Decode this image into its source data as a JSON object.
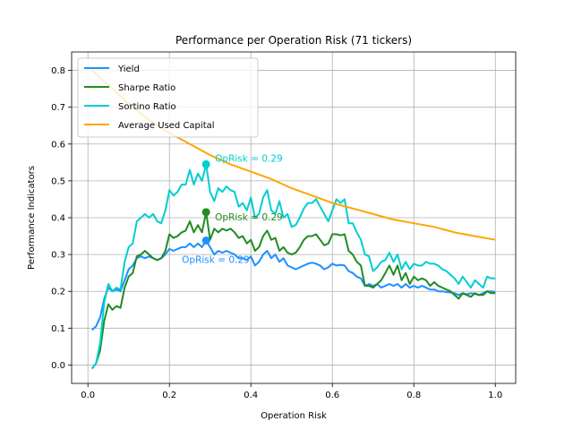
{
  "chart_data": {
    "type": "line",
    "title": "Performance per Operation Risk (71 tickers)",
    "xlabel": "Operation Risk",
    "ylabel": "Performance Indicators",
    "xlim": [
      -0.04,
      1.05
    ],
    "ylim": [
      -0.05,
      0.85
    ],
    "xticks": [
      0.0,
      0.2,
      0.4,
      0.6,
      0.8,
      1.0
    ],
    "xtick_labels": [
      "0.0",
      "0.2",
      "0.4",
      "0.6",
      "0.8",
      "1.0"
    ],
    "yticks": [
      0.0,
      0.1,
      0.2,
      0.3,
      0.4,
      0.5,
      0.6,
      0.7,
      0.8
    ],
    "ytick_labels": [
      "0.0",
      "0.1",
      "0.2",
      "0.3",
      "0.4",
      "0.5",
      "0.6",
      "0.7",
      "0.8"
    ],
    "grid": true,
    "legend_position": "top-left",
    "series": [
      {
        "name": "Yield",
        "color": "#1E90FF",
        "x": [
          0.01,
          0.02,
          0.03,
          0.04,
          0.05,
          0.06,
          0.07,
          0.08,
          0.09,
          0.1,
          0.11,
          0.12,
          0.13,
          0.14,
          0.15,
          0.16,
          0.17,
          0.18,
          0.19,
          0.2,
          0.21,
          0.22,
          0.23,
          0.24,
          0.25,
          0.26,
          0.27,
          0.28,
          0.29,
          0.3,
          0.31,
          0.32,
          0.33,
          0.34,
          0.35,
          0.36,
          0.37,
          0.38,
          0.39,
          0.4,
          0.41,
          0.42,
          0.43,
          0.44,
          0.45,
          0.46,
          0.47,
          0.48,
          0.49,
          0.5,
          0.51,
          0.52,
          0.53,
          0.54,
          0.55,
          0.56,
          0.57,
          0.58,
          0.59,
          0.6,
          0.61,
          0.62,
          0.63,
          0.64,
          0.65,
          0.66,
          0.67,
          0.68,
          0.69,
          0.7,
          0.71,
          0.72,
          0.73,
          0.74,
          0.75,
          0.76,
          0.77,
          0.78,
          0.79,
          0.8,
          0.81,
          0.82,
          0.83,
          0.84,
          0.85,
          0.86,
          0.87,
          0.88,
          0.89,
          0.9,
          0.91,
          0.92,
          0.93,
          0.94,
          0.95,
          0.96,
          0.97,
          0.98,
          0.99,
          1.0
        ],
        "y": [
          0.095,
          0.105,
          0.13,
          0.18,
          0.21,
          0.2,
          0.205,
          0.2,
          0.23,
          0.26,
          0.27,
          0.29,
          0.295,
          0.29,
          0.295,
          0.29,
          0.285,
          0.29,
          0.3,
          0.315,
          0.31,
          0.315,
          0.32,
          0.32,
          0.33,
          0.32,
          0.33,
          0.32,
          0.338,
          0.32,
          0.3,
          0.31,
          0.305,
          0.31,
          0.305,
          0.3,
          0.29,
          0.29,
          0.285,
          0.295,
          0.27,
          0.28,
          0.3,
          0.31,
          0.29,
          0.3,
          0.28,
          0.29,
          0.27,
          0.265,
          0.26,
          0.265,
          0.27,
          0.275,
          0.278,
          0.275,
          0.27,
          0.26,
          0.265,
          0.275,
          0.27,
          0.272,
          0.27,
          0.255,
          0.25,
          0.24,
          0.235,
          0.215,
          0.22,
          0.215,
          0.22,
          0.21,
          0.215,
          0.22,
          0.215,
          0.22,
          0.21,
          0.22,
          0.21,
          0.215,
          0.21,
          0.215,
          0.21,
          0.205,
          0.205,
          0.2,
          0.2,
          0.198,
          0.197,
          0.195,
          0.19,
          0.195,
          0.192,
          0.195,
          0.193,
          0.19,
          0.195,
          0.2,
          0.2,
          0.198
        ]
      },
      {
        "name": "Sharpe Ratio",
        "color": "#228B22",
        "x": [
          0.01,
          0.02,
          0.03,
          0.04,
          0.05,
          0.06,
          0.07,
          0.08,
          0.09,
          0.1,
          0.11,
          0.12,
          0.13,
          0.14,
          0.15,
          0.16,
          0.17,
          0.18,
          0.19,
          0.2,
          0.21,
          0.22,
          0.23,
          0.24,
          0.25,
          0.26,
          0.27,
          0.28,
          0.29,
          0.3,
          0.31,
          0.32,
          0.33,
          0.34,
          0.35,
          0.36,
          0.37,
          0.38,
          0.39,
          0.4,
          0.41,
          0.42,
          0.43,
          0.44,
          0.45,
          0.46,
          0.47,
          0.48,
          0.49,
          0.5,
          0.51,
          0.52,
          0.53,
          0.54,
          0.55,
          0.56,
          0.57,
          0.58,
          0.59,
          0.6,
          0.61,
          0.62,
          0.63,
          0.64,
          0.65,
          0.66,
          0.67,
          0.68,
          0.69,
          0.7,
          0.71,
          0.72,
          0.73,
          0.74,
          0.75,
          0.76,
          0.77,
          0.78,
          0.79,
          0.8,
          0.81,
          0.82,
          0.83,
          0.84,
          0.85,
          0.86,
          0.87,
          0.88,
          0.89,
          0.9,
          0.91,
          0.92,
          0.93,
          0.94,
          0.95,
          0.96,
          0.97,
          0.98,
          0.99,
          1.0
        ],
        "y": [
          -0.01,
          0.005,
          0.04,
          0.12,
          0.165,
          0.15,
          0.16,
          0.155,
          0.21,
          0.24,
          0.25,
          0.295,
          0.3,
          0.31,
          0.3,
          0.29,
          0.285,
          0.29,
          0.31,
          0.355,
          0.345,
          0.35,
          0.36,
          0.365,
          0.39,
          0.36,
          0.38,
          0.36,
          0.415,
          0.34,
          0.37,
          0.36,
          0.37,
          0.365,
          0.37,
          0.36,
          0.345,
          0.35,
          0.33,
          0.34,
          0.31,
          0.32,
          0.35,
          0.365,
          0.34,
          0.345,
          0.31,
          0.32,
          0.305,
          0.3,
          0.305,
          0.32,
          0.34,
          0.35,
          0.35,
          0.355,
          0.34,
          0.325,
          0.33,
          0.355,
          0.355,
          0.352,
          0.355,
          0.31,
          0.3,
          0.28,
          0.27,
          0.215,
          0.215,
          0.21,
          0.22,
          0.23,
          0.25,
          0.27,
          0.245,
          0.27,
          0.23,
          0.25,
          0.22,
          0.24,
          0.23,
          0.235,
          0.23,
          0.215,
          0.225,
          0.215,
          0.21,
          0.205,
          0.2,
          0.19,
          0.18,
          0.195,
          0.19,
          0.185,
          0.195,
          0.19,
          0.19,
          0.2,
          0.195,
          0.195
        ]
      },
      {
        "name": "Sortino Ratio",
        "color": "#00CED1",
        "x": [
          0.01,
          0.02,
          0.03,
          0.04,
          0.05,
          0.06,
          0.07,
          0.08,
          0.09,
          0.1,
          0.11,
          0.12,
          0.13,
          0.14,
          0.15,
          0.16,
          0.17,
          0.18,
          0.19,
          0.2,
          0.21,
          0.22,
          0.23,
          0.24,
          0.25,
          0.26,
          0.27,
          0.28,
          0.29,
          0.3,
          0.31,
          0.32,
          0.33,
          0.34,
          0.35,
          0.36,
          0.37,
          0.38,
          0.39,
          0.4,
          0.41,
          0.42,
          0.43,
          0.44,
          0.45,
          0.46,
          0.47,
          0.48,
          0.49,
          0.5,
          0.51,
          0.52,
          0.53,
          0.54,
          0.55,
          0.56,
          0.57,
          0.58,
          0.59,
          0.6,
          0.61,
          0.62,
          0.63,
          0.64,
          0.65,
          0.66,
          0.67,
          0.68,
          0.69,
          0.7,
          0.71,
          0.72,
          0.73,
          0.74,
          0.75,
          0.76,
          0.77,
          0.78,
          0.79,
          0.8,
          0.81,
          0.82,
          0.83,
          0.84,
          0.85,
          0.86,
          0.87,
          0.88,
          0.89,
          0.9,
          0.91,
          0.92,
          0.93,
          0.94,
          0.95,
          0.96,
          0.97,
          0.98,
          0.99,
          1.0
        ],
        "y": [
          -0.01,
          0.005,
          0.06,
          0.17,
          0.22,
          0.2,
          0.21,
          0.205,
          0.28,
          0.32,
          0.33,
          0.39,
          0.4,
          0.41,
          0.4,
          0.41,
          0.39,
          0.385,
          0.42,
          0.475,
          0.46,
          0.47,
          0.49,
          0.49,
          0.53,
          0.49,
          0.52,
          0.5,
          0.545,
          0.47,
          0.445,
          0.48,
          0.47,
          0.485,
          0.475,
          0.47,
          0.43,
          0.44,
          0.42,
          0.455,
          0.4,
          0.41,
          0.455,
          0.475,
          0.42,
          0.41,
          0.445,
          0.4,
          0.41,
          0.375,
          0.38,
          0.4,
          0.425,
          0.44,
          0.44,
          0.45,
          0.43,
          0.41,
          0.39,
          0.42,
          0.45,
          0.44,
          0.45,
          0.385,
          0.385,
          0.36,
          0.34,
          0.3,
          0.295,
          0.255,
          0.265,
          0.28,
          0.285,
          0.305,
          0.28,
          0.3,
          0.26,
          0.28,
          0.26,
          0.275,
          0.27,
          0.27,
          0.28,
          0.275,
          0.275,
          0.27,
          0.26,
          0.255,
          0.245,
          0.235,
          0.22,
          0.24,
          0.225,
          0.21,
          0.23,
          0.22,
          0.21,
          0.24,
          0.235,
          0.235
        ]
      },
      {
        "name": "Average Used Capital",
        "color": "#FFA500",
        "x": [
          0.01,
          0.05,
          0.1,
          0.15,
          0.2,
          0.25,
          0.3,
          0.35,
          0.4,
          0.45,
          0.5,
          0.55,
          0.6,
          0.65,
          0.7,
          0.75,
          0.8,
          0.85,
          0.9,
          0.95,
          1.0
        ],
        "y": [
          0.8,
          0.76,
          0.71,
          0.665,
          0.63,
          0.6,
          0.57,
          0.545,
          0.525,
          0.505,
          0.48,
          0.46,
          0.44,
          0.425,
          0.41,
          0.395,
          0.385,
          0.375,
          0.36,
          0.35,
          0.34
        ]
      }
    ],
    "highlights": [
      {
        "series": "Yield",
        "x": 0.29,
        "y": 0.338,
        "color": "#1E90FF",
        "label": "OpRisk = 0.29"
      },
      {
        "series": "Sharpe Ratio",
        "x": 0.29,
        "y": 0.415,
        "color": "#228B22",
        "label": "OpRisk = 0.29"
      },
      {
        "series": "Sortino Ratio",
        "x": 0.29,
        "y": 0.545,
        "color": "#00CED1",
        "label": "OpRisk = 0.29"
      }
    ]
  }
}
